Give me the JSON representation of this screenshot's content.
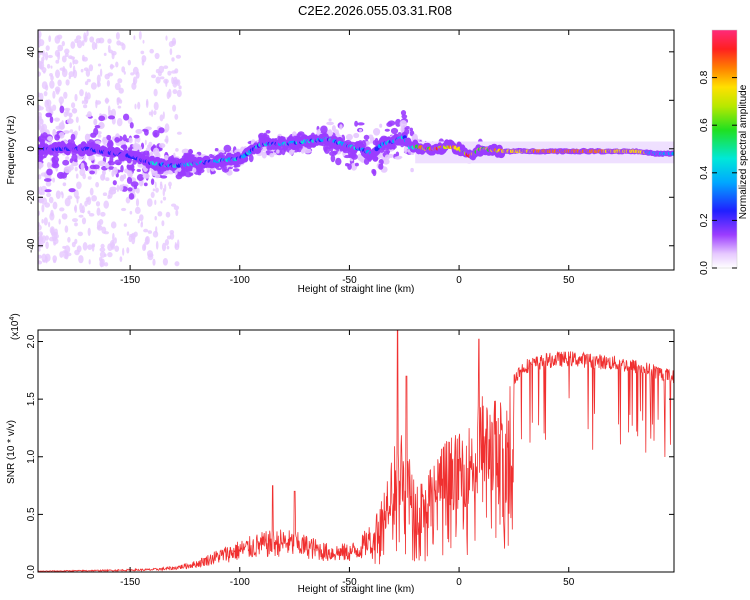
{
  "title": "C2E2.2026.055.03.31.R08",
  "chart_data": [
    {
      "type": "heatmap",
      "xlabel": "Height of straight line (km)",
      "ylabel": "Frequency (Hz)",
      "xlim": [
        -192,
        98
      ],
      "ylim": [
        -50,
        49
      ],
      "xticks": [
        -150,
        -100,
        -50,
        0,
        50
      ],
      "xtick_labels": [
        "-150",
        "-100",
        "-50",
        "0",
        "50"
      ],
      "yticks": [
        -40,
        -20,
        0,
        20,
        40
      ],
      "ytick_labels": [
        "-40",
        "-20",
        "0",
        "20",
        "40"
      ],
      "ridge": {
        "x": [
          -192,
          -170,
          -150,
          -140,
          -130,
          -120,
          -110,
          -100,
          -90,
          -80,
          -70,
          -60,
          -50,
          -45,
          -40,
          -35,
          -30,
          -25,
          -22,
          -20,
          -15,
          -10,
          -5,
          0,
          5,
          10,
          20,
          40,
          60,
          80,
          90,
          98
        ],
        "y": [
          0,
          0,
          -3,
          -6,
          -7,
          -6,
          -5,
          -4,
          2,
          2,
          3,
          4,
          1,
          0,
          -2,
          2,
          3,
          5,
          0,
          1,
          0,
          0,
          1,
          0,
          -3,
          0,
          -1,
          -1,
          -1,
          -1,
          -2,
          -2
        ]
      },
      "colorbar": {
        "label": "Normalized spectral amplitude",
        "range": [
          0,
          1
        ],
        "ticks": [
          0.0,
          0.2,
          0.4,
          0.6,
          0.8
        ],
        "tick_labels": [
          "0.0",
          "0.2",
          "0.4",
          "0.6",
          "0.8"
        ]
      }
    },
    {
      "type": "line",
      "series_name": "SNR",
      "color": "#f03030",
      "xlabel": "Height of straight line (km)",
      "ylabel": "SNR (10 * v/v)",
      "multiplier": "(x10",
      "multiplier_exp": "4",
      "multiplier_close": ")",
      "xlim": [
        -192,
        98
      ],
      "ylim": [
        0,
        2.1
      ],
      "xticks": [
        -150,
        -100,
        -50,
        0,
        50
      ],
      "xtick_labels": [
        "-150",
        "-100",
        "-50",
        "0",
        "50"
      ],
      "yticks": [
        0.0,
        0.5,
        1.0,
        1.5,
        2.0
      ],
      "ytick_labels": [
        "0.0",
        "0.5",
        "1.0",
        "1.5",
        "2.0"
      ],
      "envelope": {
        "x": [
          -192,
          -160,
          -140,
          -130,
          -120,
          -110,
          -100,
          -90,
          -80,
          -70,
          -60,
          -50,
          -45,
          -40,
          -35,
          -30,
          -25,
          -20,
          -15,
          -10,
          -5,
          0,
          5,
          10,
          15,
          20,
          25,
          30,
          40,
          50,
          60,
          70,
          80,
          90,
          98
        ],
        "y": [
          0.01,
          0.02,
          0.03,
          0.05,
          0.1,
          0.2,
          0.28,
          0.35,
          0.38,
          0.33,
          0.25,
          0.25,
          0.3,
          0.45,
          0.7,
          1.1,
          1.25,
          0.75,
          0.85,
          1.05,
          1.2,
          1.2,
          1.3,
          1.55,
          1.5,
          1.55,
          1.75,
          1.85,
          1.9,
          1.92,
          1.9,
          1.88,
          1.85,
          1.8,
          1.75
        ]
      },
      "peaks": [
        {
          "x": -28,
          "y": 2.1
        },
        {
          "x": -24,
          "y": 1.7
        },
        {
          "x": 9,
          "y": 2.02
        },
        {
          "x": -85,
          "y": 0.75
        },
        {
          "x": -75,
          "y": 0.7
        }
      ]
    }
  ]
}
